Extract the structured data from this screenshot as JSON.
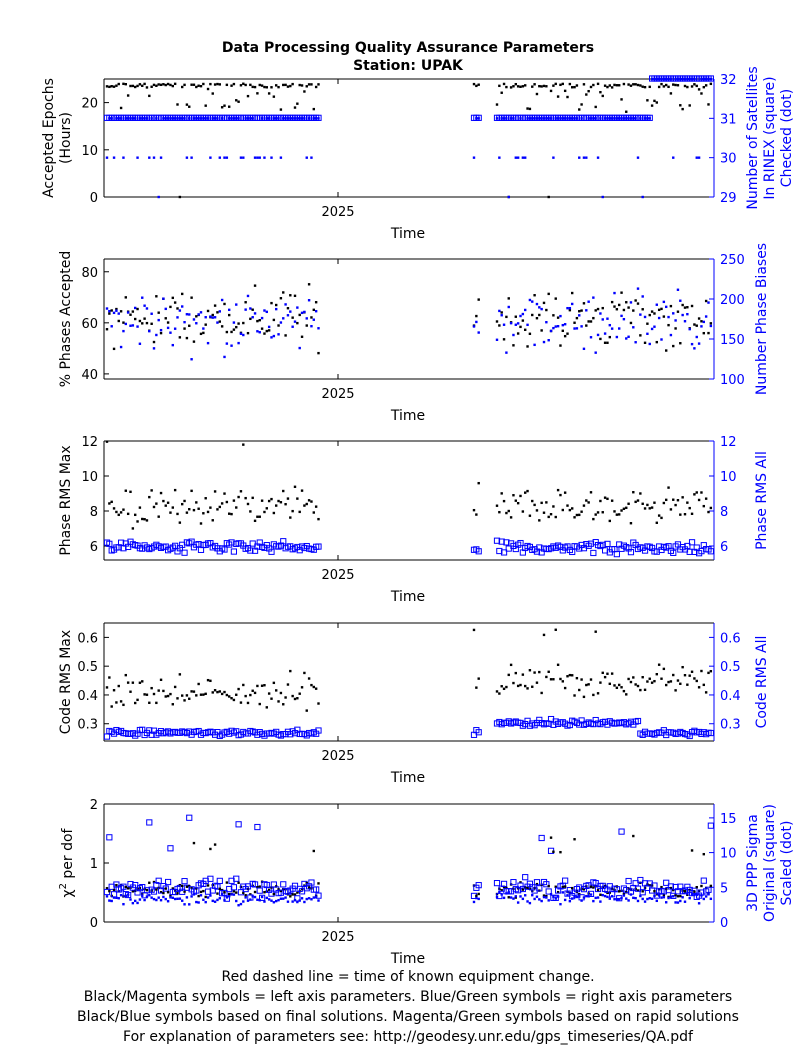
{
  "figure": {
    "title_line1": "Data Processing Quality Assurance Parameters",
    "title_line2": "Station: UPAK",
    "footer": [
      "Red dashed line = time of known equipment change.",
      "Black/Magenta symbols = left axis parameters. Blue/Green symbols = right axis parameters",
      "Black/Blue symbols based on final solutions.  Magenta/Green symbols based on rapid solutions",
      "For explanation of parameters see: http://geodesy.unr.edu/gps_timeseries/QA.pdf"
    ],
    "colors": {
      "left": "#000000",
      "right": "#0000ff"
    }
  },
  "chart_data": [
    {
      "type": "scatter",
      "xlabel": "Time",
      "xtick_label": "2025",
      "ylabel_left": [
        "Accepted Epochs",
        "(Hours)"
      ],
      "ylabel_right": [
        "Number of Satellites",
        "In RINEX (square)",
        "Checked (dot)"
      ],
      "ylim_left": [
        0,
        25
      ],
      "yticks_left": [
        0,
        10,
        20
      ],
      "ylim_right": [
        29,
        32
      ],
      "yticks_right": [
        29,
        30,
        31,
        32
      ],
      "series": [
        {
          "marker": "dot",
          "axis": "left",
          "approx_values": "mostly 22-24, few 17-21, outliers 0"
        },
        {
          "marker": "square",
          "axis": "right",
          "approx_values": "31, late section 32"
        },
        {
          "marker": "dot",
          "axis": "right",
          "approx_values": "30-32, outliers 29"
        }
      ]
    },
    {
      "type": "scatter",
      "xlabel": "Time",
      "xtick_label": "2025",
      "ylabel_left": [
        "% Phases Accepted"
      ],
      "ylabel_right": [
        "Number Phase Biases"
      ],
      "ylim_left": [
        38,
        85
      ],
      "yticks_left": [
        40,
        60,
        80
      ],
      "ylim_right": [
        100,
        250
      ],
      "yticks_right": [
        100,
        150,
        200,
        250
      ],
      "series": [
        {
          "marker": "dot",
          "axis": "left",
          "approx_values": "40-85, mostly 50-75"
        },
        {
          "marker": "dot",
          "axis": "right",
          "approx_values": "105-235, mostly 130-210"
        }
      ]
    },
    {
      "type": "scatter",
      "xlabel": "Time",
      "xtick_label": "2025",
      "ylabel_left": [
        "Phase RMS Max"
      ],
      "ylabel_right": [
        "Phase RMS All"
      ],
      "ylim_left": [
        5.2,
        12
      ],
      "yticks_left": [
        6,
        8,
        10,
        12
      ],
      "ylim_right": [
        5.2,
        12
      ],
      "yticks_right": [
        6,
        8,
        10,
        12
      ],
      "series": [
        {
          "marker": "dot",
          "axis": "left",
          "approx_values": "7-10, outliers to 12"
        },
        {
          "marker": "square",
          "axis": "right",
          "approx_values": "5.4-6.8"
        }
      ]
    },
    {
      "type": "scatter",
      "xlabel": "Time",
      "xtick_label": "2025",
      "ylabel_left": [
        "Code RMS Max"
      ],
      "ylabel_right": [
        "Code RMS All"
      ],
      "ylim_left": [
        0.24,
        0.65
      ],
      "yticks_left": [
        0.3,
        0.4,
        0.5,
        0.6
      ],
      "ylim_right": [
        0.24,
        0.65
      ],
      "yticks_right": [
        0.3,
        0.4,
        0.5,
        0.6
      ],
      "series": [
        {
          "marker": "dot",
          "axis": "left",
          "approx_values": "0.3-0.55, outliers 0.62"
        },
        {
          "marker": "square",
          "axis": "right",
          "approx_values": "0.25-0.34"
        }
      ]
    },
    {
      "type": "scatter",
      "xlabel": "Time",
      "xtick_label": "2025",
      "ylabel_left_prefix": "χ",
      "ylabel_left_sup": "2",
      "ylabel_left_suffix": " per dof",
      "ylabel_right": [
        "3D PPP Sigma",
        "Original (square)",
        "Scaled (dot)"
      ],
      "ylim_left": [
        0,
        2
      ],
      "yticks_left": [
        0,
        1,
        2
      ],
      "ylim_right": [
        0,
        17
      ],
      "yticks_right": [
        0,
        5,
        10,
        15
      ],
      "series": [
        {
          "marker": "dot",
          "axis": "left",
          "approx_values": "0.3-0.8, outliers 1.4"
        },
        {
          "marker": "square",
          "axis": "right",
          "approx_values": "3-8, outliers 13-17"
        },
        {
          "marker": "dot",
          "axis": "right",
          "approx_values": "2-5"
        }
      ]
    }
  ]
}
